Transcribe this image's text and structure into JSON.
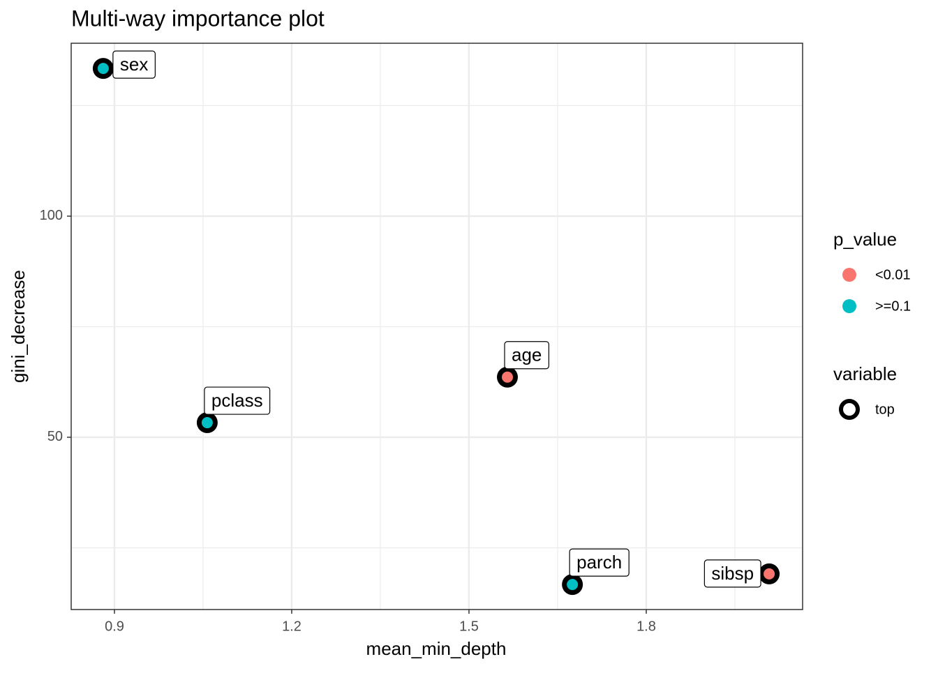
{
  "chart_data": {
    "type": "scatter",
    "title": "Multi-way importance plot",
    "x_label": "mean_min_depth",
    "y_label": "gini_decrease",
    "xlim": [
      0.8268,
      2.0646
    ],
    "ylim": [
      11.04,
      139.1
    ],
    "xticks": [
      0.9,
      1.2,
      1.5,
      1.8
    ],
    "yticks": [
      50,
      100
    ],
    "x_minor_grid": [
      1.05,
      1.35,
      1.65,
      1.95
    ],
    "y_minor_grid": [
      25,
      75,
      125
    ],
    "grid": true,
    "legend": {
      "title": "p_value"
    },
    "shape_legend": {
      "title": "variable",
      "entries": [
        "top"
      ]
    },
    "series": [
      {
        "name": "<0.01",
        "color": "#F8766D",
        "x": [
          1.565,
          2.008
        ],
        "values": [
          63.6,
          19.1
        ],
        "labels": [
          "age",
          "sibsp"
        ]
      },
      {
        "name": ">=0.1",
        "color": "#00BFC4",
        "x": [
          0.881,
          1.057,
          1.675
        ],
        "values": [
          133.4,
          53.3,
          16.7
        ],
        "labels": [
          "sex",
          "pclass",
          "parch"
        ]
      }
    ]
  }
}
